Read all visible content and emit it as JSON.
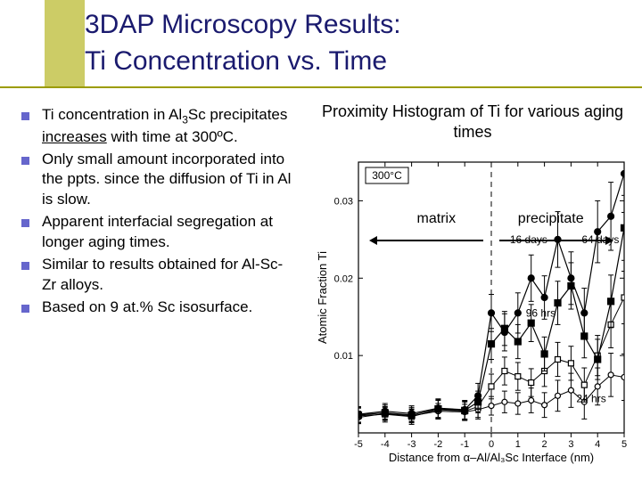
{
  "title": {
    "line1": "3DAP Microscopy Results:",
    "line2": "Ti Concentration vs. Time",
    "underline_color": "#9c9c00",
    "box_color": "#cccc66"
  },
  "bullets": {
    "mark_color": "#6666cc",
    "items": [
      {
        "pre": "Ti concentration in Al",
        "sub": "3",
        "post_sub": "Sc precipitates ",
        "underline": "increases",
        "post": " with time at 300ºC."
      },
      {
        "text": "Only small amount incorporated into the ppts. since the diffusion of Ti in Al is slow."
      },
      {
        "text": "Apparent interfacial segregation at longer aging times."
      },
      {
        "text": "Similar to results obtained for Al-Sc-Zr alloys."
      },
      {
        "text": "Based on 9 at.% Sc isosurface."
      }
    ]
  },
  "right": {
    "title": "Proximity Histogram of Ti for various aging times",
    "matrix_label": "matrix",
    "precipitate_label": "precipitate",
    "arrow_color": "#000000"
  },
  "chart": {
    "type": "line-scatter-errorbar",
    "xlabel": "Distance from α–Al/Al₃Sc Interface (nm)",
    "ylabel": "Atomic Fraction Ti",
    "xlim": [
      -5,
      5
    ],
    "ylim": [
      0,
      0.035
    ],
    "xticks": [
      -5,
      -4,
      -3,
      -2,
      -1,
      0,
      1,
      2,
      3,
      4,
      5
    ],
    "yticks": [
      0.01,
      0.02,
      0.03
    ],
    "ytick_labels": [
      "0.01",
      "0.02",
      "0.03"
    ],
    "inset_label": "300°C",
    "label_fontsize": 13,
    "tick_fontsize": 11,
    "axis_color": "#000000",
    "background_color": "#ffffff",
    "interface_line": {
      "x": 0,
      "style": "dashed",
      "color": "#000000",
      "width": 1
    },
    "series": [
      {
        "name": "24 hrs",
        "label_pos": {
          "x": 3.2,
          "y": 0.004
        },
        "marker": "open-circle",
        "marker_size": 6,
        "color": "#000000",
        "fill": "#ffffff",
        "line_width": 1,
        "x": [
          -5,
          -4,
          -3,
          -2,
          -1,
          -0.5,
          0,
          0.5,
          1,
          1.5,
          2,
          2.5,
          3,
          3.5,
          4,
          4.5,
          5
        ],
        "y": [
          0.002,
          0.0025,
          0.0022,
          0.0028,
          0.0027,
          0.003,
          0.0035,
          0.004,
          0.0038,
          0.0042,
          0.0036,
          0.0048,
          0.0055,
          0.004,
          0.006,
          0.0075,
          0.0072
        ],
        "err": [
          0.0008,
          0.0008,
          0.0008,
          0.001,
          0.001,
          0.0012,
          0.0012,
          0.0014,
          0.0014,
          0.0016,
          0.0016,
          0.002,
          0.0022,
          0.0022,
          0.0024,
          0.0028,
          0.003
        ]
      },
      {
        "name": "96 hrs",
        "label_pos": {
          "x": 1.3,
          "y": 0.015
        },
        "marker": "open-square",
        "marker_size": 6,
        "color": "#000000",
        "fill": "#ffffff",
        "line_width": 1,
        "x": [
          -5,
          -4,
          -3,
          -2,
          -1,
          -0.5,
          0,
          0.5,
          1,
          1.5,
          2,
          2.5,
          3,
          3.5,
          4,
          4.5,
          5
        ],
        "y": [
          0.0022,
          0.0024,
          0.0021,
          0.003,
          0.0028,
          0.0034,
          0.006,
          0.008,
          0.0073,
          0.0065,
          0.008,
          0.0095,
          0.009,
          0.0062,
          0.01,
          0.014,
          0.0175
        ],
        "err": [
          0.001,
          0.001,
          0.001,
          0.0012,
          0.0012,
          0.0014,
          0.0016,
          0.0018,
          0.0018,
          0.0018,
          0.002,
          0.0022,
          0.0022,
          0.0022,
          0.0026,
          0.003,
          0.0034
        ]
      },
      {
        "name": "16 days",
        "label_pos": {
          "x": 0.7,
          "y": 0.0245
        },
        "marker": "filled-square",
        "marker_size": 7,
        "color": "#000000",
        "fill": "#000000",
        "line_width": 1.2,
        "x": [
          -5,
          -4,
          -3,
          -2,
          -1,
          -0.5,
          0,
          0.5,
          1,
          1.5,
          2,
          2.5,
          3,
          3.5,
          4,
          4.5,
          5
        ],
        "y": [
          0.0023,
          0.0026,
          0.0023,
          0.0031,
          0.0029,
          0.004,
          0.0115,
          0.0135,
          0.0118,
          0.0142,
          0.0102,
          0.0168,
          0.019,
          0.0125,
          0.0095,
          0.017,
          0.0265
        ],
        "err": [
          0.001,
          0.001,
          0.001,
          0.0012,
          0.0012,
          0.0014,
          0.002,
          0.0022,
          0.0022,
          0.0024,
          0.0022,
          0.0028,
          0.003,
          0.0028,
          0.0026,
          0.0034,
          0.0042
        ]
      },
      {
        "name": "64 days",
        "label_pos": {
          "x": 3.4,
          "y": 0.0245
        },
        "marker": "filled-circle",
        "marker_size": 7,
        "color": "#000000",
        "fill": "#000000",
        "line_width": 1.2,
        "x": [
          -5,
          -4,
          -3,
          -2,
          -1,
          -0.5,
          0,
          0.5,
          1,
          1.5,
          2,
          2.5,
          3,
          3.5,
          4,
          4.5,
          5
        ],
        "y": [
          0.0024,
          0.0028,
          0.0025,
          0.0032,
          0.003,
          0.0048,
          0.0155,
          0.013,
          0.0155,
          0.02,
          0.0175,
          0.025,
          0.02,
          0.0155,
          0.026,
          0.028,
          0.0335
        ],
        "err": [
          0.001,
          0.001,
          0.001,
          0.0012,
          0.0012,
          0.0016,
          0.0024,
          0.0024,
          0.0026,
          0.003,
          0.0028,
          0.0036,
          0.0034,
          0.0032,
          0.004,
          0.0044,
          0.005
        ]
      }
    ]
  }
}
